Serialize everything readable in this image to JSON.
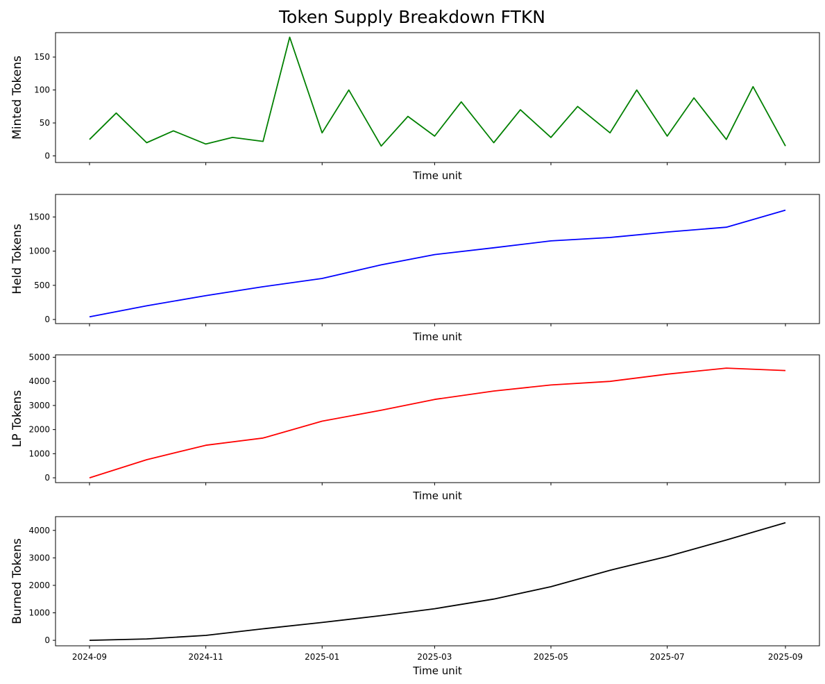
{
  "chart_data": {
    "title": "Token Supply Breakdown FTKN",
    "type": "line",
    "x_tick_labels": [
      "2024-09",
      "2024-11",
      "2025-01",
      "2025-03",
      "2025-05",
      "2025-07",
      "2025-09"
    ],
    "x_range": [
      "2024-09-01",
      "2025-09-01"
    ],
    "shared_x": true,
    "grid": false,
    "panels": [
      {
        "xlabel": "Time unit",
        "ylabel": "Minted Tokens",
        "ylim": [
          -10,
          187
        ],
        "yticks": [
          0,
          50,
          100,
          150
        ],
        "color": "#008000",
        "series": [
          {
            "x": [
              "2024-09-01",
              "2024-09-15",
              "2024-10-01",
              "2024-10-15",
              "2024-11-01",
              "2024-11-15",
              "2024-12-01",
              "2024-12-15",
              "2025-01-01",
              "2025-01-15",
              "2025-02-01",
              "2025-02-15",
              "2025-03-01",
              "2025-03-15",
              "2025-04-01",
              "2025-04-15",
              "2025-05-01",
              "2025-05-15",
              "2025-06-01",
              "2025-06-15",
              "2025-07-01",
              "2025-07-15",
              "2025-08-01",
              "2025-08-15",
              "2025-09-01"
            ],
            "values": [
              25,
              65,
              20,
              38,
              18,
              28,
              22,
              180,
              35,
              100,
              15,
              60,
              30,
              82,
              20,
              70,
              28,
              75,
              35,
              100,
              30,
              88,
              25,
              105,
              15
            ]
          }
        ]
      },
      {
        "xlabel": "Time unit",
        "ylabel": "Held Tokens",
        "ylim": [
          -60,
          1830
        ],
        "yticks": [
          0,
          500,
          1000,
          1500
        ],
        "color": "#0000ff",
        "series": [
          {
            "x": [
              "2024-09-01",
              "2024-10-01",
              "2024-11-01",
              "2024-12-01",
              "2025-01-01",
              "2025-02-01",
              "2025-03-01",
              "2025-04-01",
              "2025-05-01",
              "2025-06-01",
              "2025-07-01",
              "2025-08-01",
              "2025-09-01"
            ],
            "values": [
              40,
              200,
              350,
              480,
              600,
              800,
              950,
              1050,
              1150,
              1200,
              1280,
              1350,
              1600
            ]
          }
        ]
      },
      {
        "xlabel": "Time unit",
        "ylabel": "LP Tokens",
        "ylim": [
          -200,
          5100
        ],
        "yticks": [
          0,
          1000,
          2000,
          3000,
          4000,
          5000
        ],
        "color": "#ff0000",
        "series": [
          {
            "x": [
              "2024-09-01",
              "2024-10-01",
              "2024-11-01",
              "2024-12-01",
              "2025-01-01",
              "2025-02-01",
              "2025-03-01",
              "2025-04-01",
              "2025-05-01",
              "2025-06-01",
              "2025-07-01",
              "2025-08-01",
              "2025-09-01"
            ],
            "values": [
              0,
              750,
              1350,
              1650,
              2350,
              2800,
              3250,
              3600,
              3850,
              4000,
              4300,
              4550,
              4450
            ]
          }
        ]
      },
      {
        "xlabel": "Time unit",
        "ylabel": "Burned Tokens",
        "ylim": [
          -200,
          4500
        ],
        "yticks": [
          0,
          1000,
          2000,
          3000,
          4000
        ],
        "color": "#000000",
        "series": [
          {
            "x": [
              "2024-09-01",
              "2024-10-01",
              "2024-11-01",
              "2024-12-01",
              "2025-01-01",
              "2025-02-01",
              "2025-03-01",
              "2025-04-01",
              "2025-05-01",
              "2025-06-01",
              "2025-07-01",
              "2025-08-01",
              "2025-09-01"
            ],
            "values": [
              0,
              50,
              180,
              420,
              650,
              900,
              1150,
              1500,
              1950,
              2550,
              3050,
              3650,
              4280
            ]
          }
        ]
      }
    ]
  }
}
